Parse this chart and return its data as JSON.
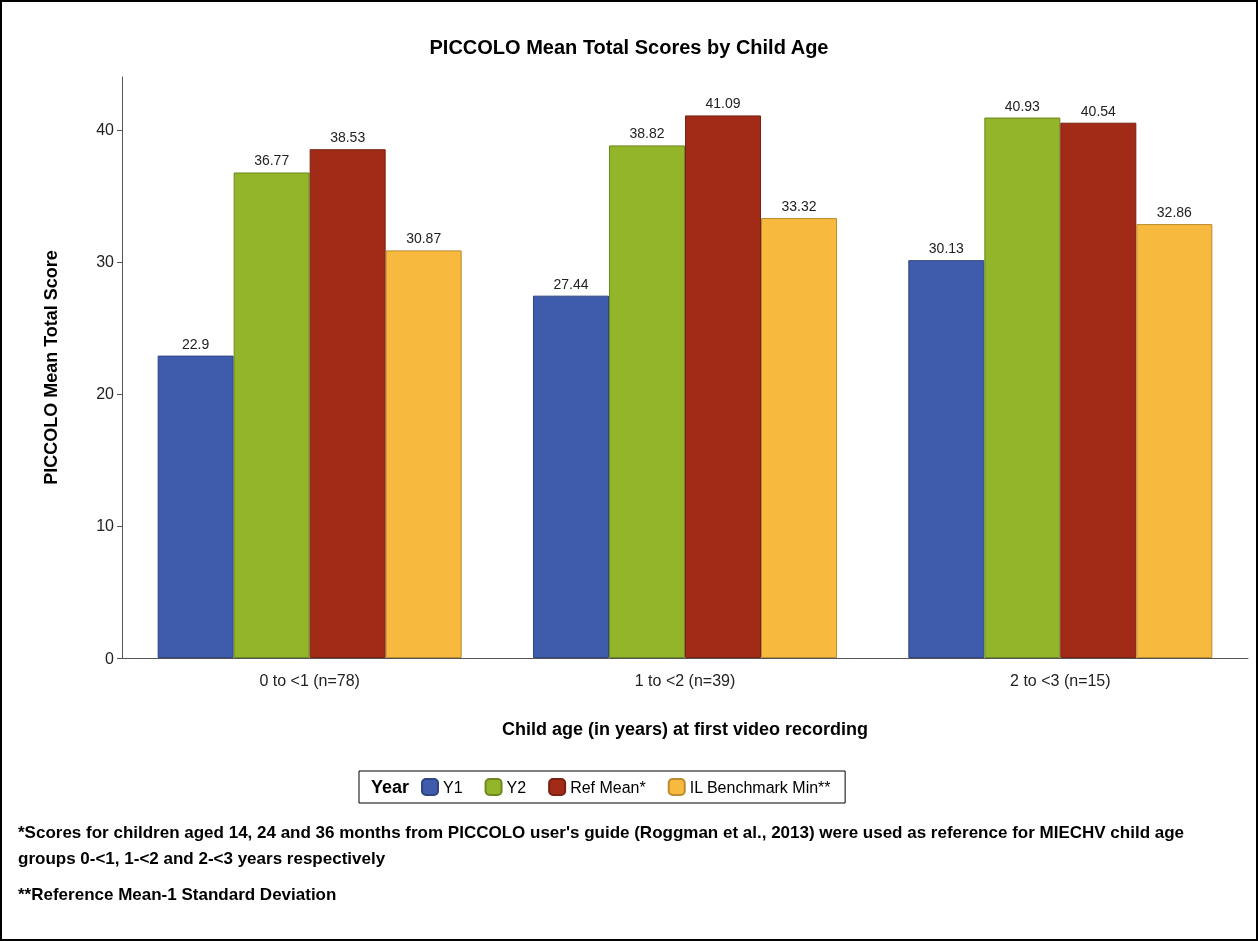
{
  "chart_data": {
    "type": "bar",
    "title": "PICCOLO Mean Total Scores by Child Age",
    "xlabel": "Child age (in years) at first video recording",
    "ylabel": "PICCOLO Mean Total Score",
    "legend_title": "Year",
    "categories": [
      "0 to <1 (n=78)",
      "1 to <2 (n=39)",
      "2 to <3 (n=15)"
    ],
    "series": [
      {
        "name": "Y1",
        "color": "#3f5bab",
        "values": [
          22.9,
          27.44,
          30.13
        ]
      },
      {
        "name": "Y2",
        "color": "#93b52a",
        "values": [
          36.77,
          38.82,
          40.93
        ]
      },
      {
        "name": "Ref Mean*",
        "color": "#a12b17",
        "values": [
          38.53,
          41.09,
          40.54
        ]
      },
      {
        "name": "IL Benchmark Min**",
        "color": "#f8b93f",
        "values": [
          30.87,
          33.32,
          32.86
        ]
      }
    ],
    "ylim": [
      0,
      44
    ],
    "yticks": [
      0,
      10,
      20,
      30,
      40
    ],
    "data_labels": true,
    "grid": false,
    "legend": "bottom",
    "annotations": [
      "*Scores for children aged 14, 24 and 36 months from PICCOLO user's guide (Roggman et al., 2013) were used as reference for MIECHV child age groups 0-<1, 1-<2 and 2-<3 years respectively",
      "**Reference Mean-1 Standard Deviation"
    ]
  }
}
